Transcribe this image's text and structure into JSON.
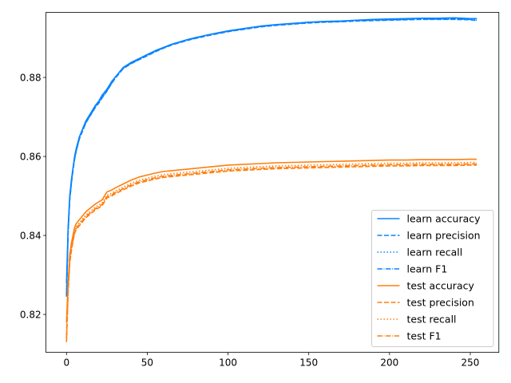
{
  "chart_data": {
    "type": "line",
    "xlim": [
      -12.7,
      267.7
    ],
    "ylim": [
      0.8104,
      0.8965
    ],
    "xticks": [
      0,
      50,
      100,
      150,
      200,
      250
    ],
    "yticks": [
      0.82,
      0.84,
      0.86,
      0.88
    ],
    "ytick_labels": [
      "0.82",
      "0.84",
      "0.86",
      "0.88"
    ],
    "grid": false,
    "legend_position": "lower-right",
    "colors": {
      "learn": "#1f77b4",
      "learn_display": "#0a84ff",
      "test": "#ff7f0e"
    },
    "series": [
      {
        "name": "learn accuracy",
        "group": "learn",
        "style": "solid",
        "x": [
          0,
          1,
          2,
          3,
          4,
          5,
          6,
          8,
          10,
          12,
          15,
          18,
          20,
          22,
          25,
          28,
          30,
          35,
          40,
          45,
          50,
          55,
          60,
          65,
          70,
          75,
          80,
          90,
          100,
          110,
          120,
          130,
          140,
          150,
          160,
          170,
          180,
          190,
          200,
          210,
          220,
          230,
          240,
          250,
          254
        ],
        "y": [
          0.828,
          0.842,
          0.85,
          0.854,
          0.857,
          0.86,
          0.862,
          0.865,
          0.867,
          0.869,
          0.871,
          0.873,
          0.874,
          0.8755,
          0.877,
          0.879,
          0.88,
          0.8825,
          0.8838,
          0.8848,
          0.8858,
          0.8868,
          0.8876,
          0.8884,
          0.889,
          0.8896,
          0.8901,
          0.891,
          0.8918,
          0.8924,
          0.893,
          0.8934,
          0.8937,
          0.894,
          0.8942,
          0.8943,
          0.8945,
          0.8947,
          0.8948,
          0.8949,
          0.895,
          0.895,
          0.8951,
          0.8949,
          0.8949
        ]
      },
      {
        "name": "learn precision",
        "group": "learn",
        "style": "dashed",
        "x": [
          0,
          1,
          2,
          3,
          4,
          5,
          6,
          8,
          10,
          12,
          15,
          18,
          20,
          22,
          25,
          28,
          30,
          35,
          40,
          45,
          50,
          55,
          60,
          65,
          70,
          75,
          80,
          90,
          100,
          110,
          120,
          130,
          140,
          150,
          160,
          170,
          180,
          190,
          200,
          210,
          220,
          230,
          240,
          250,
          254
        ],
        "y": [
          0.8245,
          0.8405,
          0.849,
          0.853,
          0.8565,
          0.8593,
          0.8613,
          0.8645,
          0.8665,
          0.8685,
          0.8705,
          0.8725,
          0.8735,
          0.8748,
          0.8765,
          0.8785,
          0.8797,
          0.8822,
          0.8835,
          0.8845,
          0.8855,
          0.8865,
          0.8874,
          0.8882,
          0.8888,
          0.8894,
          0.8899,
          0.8908,
          0.8916,
          0.8922,
          0.8928,
          0.8932,
          0.8935,
          0.8938,
          0.894,
          0.8941,
          0.8943,
          0.8944,
          0.8945,
          0.8946,
          0.8947,
          0.8947,
          0.8947,
          0.8946,
          0.8944
        ]
      },
      {
        "name": "learn recall",
        "group": "learn",
        "style": "dotted",
        "x": [
          0,
          1,
          2,
          3,
          4,
          5,
          6,
          8,
          10,
          12,
          15,
          18,
          20,
          22,
          25,
          28,
          30,
          35,
          40,
          45,
          50,
          55,
          60,
          65,
          70,
          75,
          80,
          90,
          100,
          110,
          120,
          130,
          140,
          150,
          160,
          170,
          180,
          190,
          200,
          210,
          220,
          230,
          240,
          250,
          254
        ],
        "y": [
          0.8255,
          0.8415,
          0.8495,
          0.8535,
          0.8568,
          0.8596,
          0.8616,
          0.8648,
          0.8668,
          0.8688,
          0.8708,
          0.8728,
          0.8738,
          0.8751,
          0.8768,
          0.8788,
          0.8799,
          0.8824,
          0.8836,
          0.8846,
          0.8856,
          0.8866,
          0.8875,
          0.8883,
          0.8889,
          0.8895,
          0.89,
          0.8909,
          0.8917,
          0.8923,
          0.8929,
          0.8933,
          0.8936,
          0.8939,
          0.8941,
          0.8942,
          0.8944,
          0.8945,
          0.8946,
          0.8947,
          0.8948,
          0.8948,
          0.8948,
          0.8947,
          0.8945
        ]
      },
      {
        "name": "learn F1",
        "group": "learn",
        "style": "dashdot",
        "x": [
          0,
          1,
          2,
          3,
          4,
          5,
          6,
          8,
          10,
          12,
          15,
          18,
          20,
          22,
          25,
          28,
          30,
          35,
          40,
          45,
          50,
          55,
          60,
          65,
          70,
          75,
          80,
          90,
          100,
          110,
          120,
          130,
          140,
          150,
          160,
          170,
          180,
          190,
          200,
          210,
          220,
          230,
          240,
          250,
          254
        ],
        "y": [
          0.825,
          0.841,
          0.8492,
          0.8532,
          0.8566,
          0.8594,
          0.8614,
          0.8646,
          0.8666,
          0.8686,
          0.8706,
          0.8726,
          0.8736,
          0.8749,
          0.8766,
          0.8786,
          0.8798,
          0.8823,
          0.8836,
          0.8846,
          0.8856,
          0.8866,
          0.8875,
          0.8883,
          0.8889,
          0.8895,
          0.89,
          0.8909,
          0.8917,
          0.8923,
          0.8929,
          0.8933,
          0.8936,
          0.8939,
          0.8941,
          0.8942,
          0.8944,
          0.8945,
          0.8946,
          0.8947,
          0.8948,
          0.8948,
          0.8948,
          0.8947,
          0.8945
        ]
      },
      {
        "name": "test accuracy",
        "group": "test",
        "style": "solid",
        "x": [
          0,
          1,
          2,
          3,
          4,
          5,
          6,
          8,
          10,
          12,
          15,
          18,
          20,
          22,
          25,
          28,
          30,
          35,
          40,
          45,
          50,
          55,
          60,
          65,
          70,
          75,
          80,
          90,
          100,
          110,
          120,
          130,
          140,
          150,
          160,
          170,
          180,
          190,
          200,
          210,
          220,
          230,
          240,
          250,
          254
        ],
        "y": [
          0.818,
          0.828,
          0.835,
          0.838,
          0.84,
          0.842,
          0.843,
          0.844,
          0.845,
          0.846,
          0.847,
          0.848,
          0.8485,
          0.849,
          0.851,
          0.8515,
          0.852,
          0.853,
          0.854,
          0.8548,
          0.8553,
          0.8558,
          0.8562,
          0.8564,
          0.8566,
          0.8568,
          0.857,
          0.8574,
          0.8578,
          0.858,
          0.8582,
          0.8584,
          0.8585,
          0.8586,
          0.8587,
          0.8588,
          0.8589,
          0.859,
          0.8591,
          0.8591,
          0.8592,
          0.8592,
          0.8592,
          0.8593,
          0.8593
        ]
      },
      {
        "name": "test precision",
        "group": "test",
        "style": "dashed",
        "x": [
          0,
          1,
          2,
          3,
          4,
          5,
          6,
          8,
          10,
          12,
          15,
          18,
          20,
          22,
          25,
          28,
          30,
          35,
          40,
          45,
          50,
          55,
          60,
          65,
          70,
          75,
          80,
          90,
          100,
          110,
          120,
          130,
          140,
          150,
          160,
          170,
          180,
          190,
          200,
          210,
          220,
          230,
          240,
          250,
          254
        ],
        "y": [
          0.813,
          0.8255,
          0.833,
          0.836,
          0.8385,
          0.8405,
          0.8415,
          0.8425,
          0.8435,
          0.8445,
          0.8455,
          0.8465,
          0.847,
          0.8475,
          0.8495,
          0.85,
          0.8505,
          0.8515,
          0.8525,
          0.8533,
          0.8538,
          0.8543,
          0.8547,
          0.8549,
          0.8551,
          0.8553,
          0.8555,
          0.8559,
          0.8563,
          0.8565,
          0.8567,
          0.8569,
          0.857,
          0.8571,
          0.8572,
          0.8573,
          0.8574,
          0.8575,
          0.8576,
          0.8576,
          0.8577,
          0.8577,
          0.8577,
          0.8578,
          0.8578
        ]
      },
      {
        "name": "test recall",
        "group": "test",
        "style": "dotted",
        "x": [
          0,
          1,
          2,
          3,
          4,
          5,
          6,
          8,
          10,
          12,
          15,
          18,
          20,
          22,
          25,
          28,
          30,
          35,
          40,
          45,
          50,
          55,
          60,
          65,
          70,
          75,
          80,
          90,
          100,
          110,
          120,
          130,
          140,
          150,
          160,
          170,
          180,
          190,
          200,
          210,
          220,
          230,
          240,
          250,
          254
        ],
        "y": [
          0.815,
          0.8265,
          0.8338,
          0.8368,
          0.8392,
          0.8412,
          0.8422,
          0.8432,
          0.8442,
          0.8452,
          0.8462,
          0.8472,
          0.8477,
          0.8482,
          0.8502,
          0.8507,
          0.8512,
          0.8522,
          0.8532,
          0.854,
          0.8545,
          0.855,
          0.8554,
          0.8556,
          0.8558,
          0.856,
          0.8562,
          0.8566,
          0.857,
          0.8572,
          0.8574,
          0.8576,
          0.8577,
          0.8578,
          0.8579,
          0.858,
          0.8581,
          0.8582,
          0.8583,
          0.8583,
          0.8584,
          0.8584,
          0.8584,
          0.8585,
          0.8585
        ]
      },
      {
        "name": "test F1",
        "group": "test",
        "style": "dashdot",
        "x": [
          0,
          1,
          2,
          3,
          4,
          5,
          6,
          8,
          10,
          12,
          15,
          18,
          20,
          22,
          25,
          28,
          30,
          35,
          40,
          45,
          50,
          55,
          60,
          65,
          70,
          75,
          80,
          90,
          100,
          110,
          120,
          130,
          140,
          150,
          160,
          170,
          180,
          190,
          200,
          210,
          220,
          230,
          240,
          250,
          254
        ],
        "y": [
          0.814,
          0.826,
          0.8334,
          0.8364,
          0.8388,
          0.8408,
          0.8418,
          0.8428,
          0.8438,
          0.8448,
          0.8458,
          0.8468,
          0.8473,
          0.8478,
          0.8498,
          0.8503,
          0.8508,
          0.8518,
          0.8528,
          0.8536,
          0.8541,
          0.8546,
          0.855,
          0.8552,
          0.8554,
          0.8556,
          0.8558,
          0.8562,
          0.8566,
          0.8568,
          0.857,
          0.8572,
          0.8573,
          0.8574,
          0.8575,
          0.8576,
          0.8577,
          0.8578,
          0.8579,
          0.8579,
          0.858,
          0.858,
          0.858,
          0.8581,
          0.8581
        ]
      }
    ]
  }
}
